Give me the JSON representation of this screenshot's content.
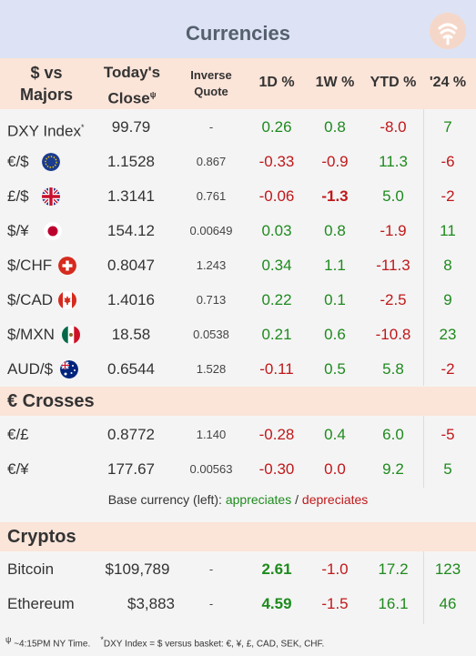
{
  "title": "Currencies",
  "headers": {
    "pair": "$ vs Majors",
    "close": "Today's Close",
    "close_mark": "ψ",
    "inverse": "Inverse Quote",
    "d1": "1D %",
    "w1": "1W %",
    "ytd": "YTD %",
    "y24": "'24 %"
  },
  "majors": [
    {
      "name": "DXY Index",
      "mark": "*",
      "close": "99.79",
      "inverse": "-",
      "d1": "0.26",
      "w1": "0.8",
      "ytd": "-8.0",
      "y24": "7"
    },
    {
      "name": "€/$",
      "flag": "eu-flag-icon",
      "close": "1.1528",
      "inverse": "0.867",
      "d1": "-0.33",
      "w1": "-0.9",
      "ytd": "11.3",
      "y24": "-6"
    },
    {
      "name": "£/$",
      "flag": "uk-flag-icon",
      "close": "1.3141",
      "inverse": "0.761",
      "d1": "-0.06",
      "w1": "-1.3",
      "ytd": "5.0",
      "y24": "-2"
    },
    {
      "name": "$/¥",
      "flag": "japan-flag-icon",
      "close": "154.12",
      "inverse": "0.00649",
      "d1": "0.03",
      "w1": "0.8",
      "ytd": "-1.9",
      "y24": "11"
    },
    {
      "name": "$/CHF",
      "flag": "swiss-flag-icon",
      "close": "0.8047",
      "inverse": "1.243",
      "d1": "0.34",
      "w1": "1.1",
      "ytd": "-11.3",
      "y24": "8"
    },
    {
      "name": "$/CAD",
      "flag": "canada-flag-icon",
      "close": "1.4016",
      "inverse": "0.713",
      "d1": "0.22",
      "w1": "0.1",
      "ytd": "-2.5",
      "y24": "9"
    },
    {
      "name": "$/MXN",
      "flag": "mexico-flag-icon",
      "close": "18.58",
      "inverse": "0.0538",
      "d1": "0.21",
      "w1": "0.6",
      "ytd": "-10.8",
      "y24": "23"
    },
    {
      "name": "AUD/$",
      "flag": "australia-flag-icon",
      "close": "0.6544",
      "inverse": "1.528",
      "d1": "-0.11",
      "w1": "0.5",
      "ytd": "5.8",
      "y24": "-2"
    }
  ],
  "crosses_title": "€ Crosses",
  "crosses": [
    {
      "name": "€/£",
      "close": "0.8772",
      "inverse": "1.140",
      "d1": "-0.28",
      "w1": "0.4",
      "ytd": "6.0",
      "y24": "-5"
    },
    {
      "name": "€/¥",
      "close": "177.67",
      "inverse": "0.00563",
      "d1": "-0.30",
      "w1": "0.0",
      "ytd": "9.2",
      "y24": "5"
    }
  ],
  "legend": {
    "prefix": "Base currency (left):",
    "appreciates": "appreciates",
    "slash": "/",
    "depreciates": "depreciates"
  },
  "cryptos_title": "Cryptos",
  "cryptos": [
    {
      "name": "Bitcoin",
      "close": "$109,789",
      "inverse": "-",
      "d1": "2.61",
      "w1": "-1.0",
      "ytd": "17.2",
      "y24": "123"
    },
    {
      "name": "Ethereum",
      "close": "$3,883",
      "inverse": "-",
      "d1": "4.59",
      "w1": "-1.5",
      "ytd": "16.1",
      "y24": "46"
    }
  ],
  "footnote": {
    "mark1": "ψ",
    "time": "~4:15PM NY Time.",
    "mark2": "*",
    "dxy": "DXY Index = $ versus basket: €, ¥, £, CAD, SEK, CHF."
  },
  "colors": {
    "positive": "#1e8a1e",
    "negative": "#c0181a",
    "header_bg": "#fbe4d8",
    "title_bg": "#dde3f4"
  }
}
